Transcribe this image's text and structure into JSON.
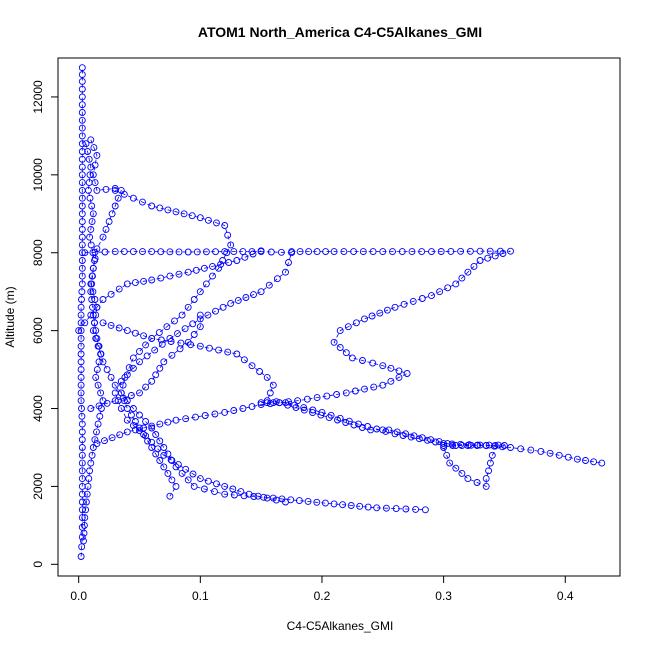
{
  "chart_data": {
    "type": "scatter",
    "title": "ATOM1 North_America C4-C5Alkanes_GMI",
    "xlabel": "C4-C5Alkanes_GMI",
    "ylabel": "Altitude (m)",
    "xlim": [
      -0.017,
      0.445
    ],
    "ylim": [
      -300,
      13000
    ],
    "x_ticks": [
      0.0,
      0.1,
      0.2,
      0.3,
      0.4
    ],
    "x_tick_labels": [
      "0.0",
      "0.1",
      "0.2",
      "0.3",
      "0.4"
    ],
    "y_ticks": [
      0,
      2000,
      4000,
      6000,
      8000,
      10000,
      12000
    ],
    "y_tick_labels": [
      "0",
      "2000",
      "4000",
      "6000",
      "8000",
      "10000",
      "12000"
    ],
    "color": "#0000ff",
    "marker": "open-circle",
    "line_style": "dashed",
    "grid": false,
    "legend": "none",
    "series": [
      {
        "values": [
          [
            0.002,
            200
          ],
          [
            0.003,
            700
          ],
          [
            0.003,
            1200
          ],
          [
            0.003,
            1800
          ],
          [
            0.003,
            2400
          ],
          [
            0.003,
            3000
          ],
          [
            0.003,
            3600
          ],
          [
            0.002,
            4200
          ],
          [
            0.002,
            4800
          ],
          [
            0.002,
            5400
          ],
          [
            0.002,
            6000
          ],
          [
            0.002,
            6600
          ],
          [
            0.003,
            7200
          ],
          [
            0.003,
            7800
          ],
          [
            0.003,
            8400
          ],
          [
            0.003,
            9000
          ],
          [
            0.003,
            9600
          ],
          [
            0.003,
            10200
          ],
          [
            0.003,
            10800
          ],
          [
            0.003,
            11400
          ],
          [
            0.003,
            12000
          ],
          [
            0.003,
            12400
          ],
          [
            0.003,
            12750
          ]
        ]
      },
      {
        "values": [
          [
            0.01,
            10900
          ],
          [
            0.015,
            10500
          ],
          [
            0.012,
            10000
          ],
          [
            0.015,
            9600
          ],
          [
            0.03,
            9650
          ],
          [
            0.035,
            9600
          ],
          [
            0.03,
            9200
          ],
          [
            0.025,
            8800
          ],
          [
            0.02,
            8400
          ],
          [
            0.015,
            8100
          ],
          [
            0.012,
            7600
          ],
          [
            0.01,
            7000
          ],
          [
            0.012,
            6400
          ],
          [
            0.015,
            5800
          ],
          [
            0.02,
            5200
          ],
          [
            0.03,
            4600
          ],
          [
            0.045,
            4000
          ],
          [
            0.06,
            3500
          ],
          [
            0.07,
            3000
          ],
          [
            0.08,
            2500
          ],
          [
            0.095,
            2000
          ],
          [
            0.12,
            1800
          ],
          [
            0.16,
            1700
          ],
          [
            0.21,
            1550
          ],
          [
            0.245,
            1450
          ],
          [
            0.285,
            1400
          ]
        ]
      },
      {
        "values": [
          [
            0.03,
            9600
          ],
          [
            0.06,
            9200
          ],
          [
            0.1,
            8900
          ],
          [
            0.12,
            8700
          ],
          [
            0.125,
            8200
          ],
          [
            0.115,
            7600
          ],
          [
            0.1,
            7000
          ],
          [
            0.085,
            6400
          ],
          [
            0.06,
            5800
          ],
          [
            0.045,
            5300
          ],
          [
            0.038,
            4800
          ],
          [
            0.035,
            4400
          ],
          [
            0.04,
            4000
          ],
          [
            0.05,
            3500
          ],
          [
            0.06,
            3000
          ],
          [
            0.07,
            2500
          ],
          [
            0.08,
            2000
          ],
          [
            0.075,
            1750
          ]
        ]
      },
      {
        "values": [
          [
            0.005,
            8000
          ],
          [
            0.03,
            8030
          ],
          [
            0.06,
            8030
          ],
          [
            0.09,
            8020
          ],
          [
            0.12,
            8030
          ],
          [
            0.15,
            8030
          ],
          [
            0.175,
            8000
          ],
          [
            0.17,
            7500
          ],
          [
            0.15,
            7000
          ],
          [
            0.125,
            6700
          ],
          [
            0.1,
            6300
          ],
          [
            0.075,
            5800
          ],
          [
            0.05,
            5200
          ],
          [
            0.035,
            4700
          ],
          [
            0.03,
            4400
          ],
          [
            0.035,
            4000
          ],
          [
            0.04,
            3700
          ],
          [
            0.055,
            3300
          ],
          [
            0.07,
            2800
          ],
          [
            0.1,
            2200
          ],
          [
            0.14,
            1800
          ],
          [
            0.17,
            1600
          ]
        ]
      },
      {
        "values": [
          [
            0.175,
            8030
          ],
          [
            0.21,
            8030
          ],
          [
            0.25,
            8030
          ],
          [
            0.29,
            8030
          ],
          [
            0.33,
            8040
          ],
          [
            0.355,
            8040
          ],
          [
            0.33,
            7800
          ],
          [
            0.31,
            7200
          ],
          [
            0.29,
            6900
          ],
          [
            0.26,
            6600
          ],
          [
            0.235,
            6300
          ],
          [
            0.215,
            6000
          ],
          [
            0.21,
            5700
          ],
          [
            0.225,
            5300
          ],
          [
            0.25,
            5100
          ],
          [
            0.27,
            4900
          ],
          [
            0.25,
            4600
          ],
          [
            0.22,
            4400
          ],
          [
            0.18,
            4200
          ],
          [
            0.15,
            4100
          ],
          [
            0.12,
            3900
          ],
          [
            0.08,
            3700
          ],
          [
            0.04,
            3400
          ],
          [
            0.015,
            3100
          ]
        ]
      },
      {
        "values": [
          [
            0.02,
            6200
          ],
          [
            0.06,
            5800
          ],
          [
            0.1,
            5600
          ],
          [
            0.13,
            5400
          ],
          [
            0.155,
            4800
          ],
          [
            0.16,
            4600
          ],
          [
            0.155,
            4200
          ],
          [
            0.17,
            4150
          ],
          [
            0.2,
            3900
          ],
          [
            0.23,
            3600
          ],
          [
            0.26,
            3350
          ],
          [
            0.3,
            3100
          ],
          [
            0.335,
            3050
          ],
          [
            0.355,
            3000
          ],
          [
            0.38,
            2900
          ],
          [
            0.41,
            2700
          ],
          [
            0.43,
            2600
          ]
        ]
      },
      {
        "values": [
          [
            0.3,
            3050
          ],
          [
            0.315,
            3050
          ],
          [
            0.33,
            3060
          ],
          [
            0.345,
            3060
          ],
          [
            0.34,
            2800
          ],
          [
            0.337,
            2400
          ],
          [
            0.335,
            2200
          ],
          [
            0.335,
            2000
          ],
          [
            0.32,
            2200
          ],
          [
            0.305,
            2600
          ],
          [
            0.3,
            3000
          ]
        ]
      },
      {
        "values": [
          [
            0.0,
            6000
          ],
          [
            0.02,
            6800
          ],
          [
            0.04,
            7200
          ],
          [
            0.06,
            7300
          ],
          [
            0.09,
            7500
          ],
          [
            0.11,
            7650
          ],
          [
            0.13,
            7800
          ],
          [
            0.15,
            8050
          ]
        ]
      },
      {
        "values": [
          [
            0.01,
            4000
          ],
          [
            0.03,
            4200
          ],
          [
            0.05,
            4400
          ],
          [
            0.06,
            4700
          ],
          [
            0.07,
            5200
          ],
          [
            0.09,
            5700
          ],
          [
            0.1,
            6100
          ],
          [
            0.1,
            6400
          ]
        ]
      },
      {
        "values": [
          [
            0.006,
            10800
          ],
          [
            0.01,
            10200
          ],
          [
            0.008,
            9600
          ],
          [
            0.012,
            9000
          ],
          [
            0.009,
            8400
          ],
          [
            0.013,
            7800
          ],
          [
            0.01,
            7200
          ],
          [
            0.015,
            6600
          ],
          [
            0.012,
            6000
          ],
          [
            0.018,
            5400
          ],
          [
            0.014,
            4800
          ],
          [
            0.02,
            4200
          ],
          [
            0.016,
            3600
          ],
          [
            0.012,
            3000
          ],
          [
            0.009,
            2400
          ],
          [
            0.007,
            1800
          ],
          [
            0.005,
            1200
          ],
          [
            0.004,
            600
          ]
        ]
      },
      {
        "values": [
          [
            0.15,
            4150
          ],
          [
            0.155,
            4150
          ],
          [
            0.16,
            4150
          ],
          [
            0.165,
            4150
          ],
          [
            0.24,
            3450
          ],
          [
            0.25,
            3450
          ],
          [
            0.255,
            3450
          ],
          [
            0.31,
            3050
          ],
          [
            0.32,
            3050
          ],
          [
            0.335,
            3050
          ],
          [
            0.35,
            3050
          ]
        ]
      }
    ]
  }
}
